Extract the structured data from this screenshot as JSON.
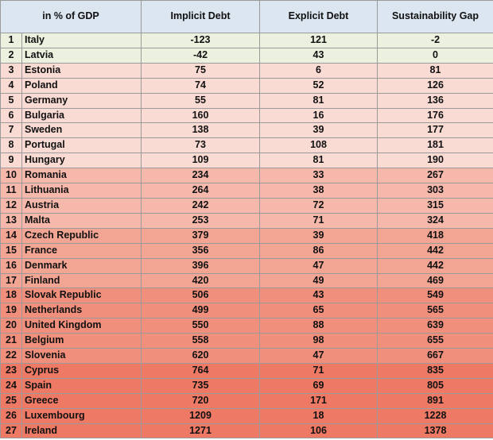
{
  "table": {
    "header": [
      "in % of GDP",
      "Implicit Debt",
      "Explicit Debt",
      "Sustainability Gap"
    ],
    "rows": [
      [
        1,
        "Italy",
        -123,
        121,
        -2
      ],
      [
        2,
        "Latvia",
        -42,
        43,
        0
      ],
      [
        3,
        "Estonia",
        75,
        6,
        81
      ],
      [
        4,
        "Poland",
        74,
        52,
        126
      ],
      [
        5,
        "Germany",
        55,
        81,
        136
      ],
      [
        6,
        "Bulgaria",
        160,
        16,
        176
      ],
      [
        7,
        "Sweden",
        138,
        39,
        177
      ],
      [
        8,
        "Portugal",
        73,
        108,
        181
      ],
      [
        9,
        "Hungary",
        109,
        81,
        190
      ],
      [
        10,
        "Romania",
        234,
        33,
        267
      ],
      [
        11,
        "Lithuania",
        264,
        38,
        303
      ],
      [
        12,
        "Austria",
        242,
        72,
        315
      ],
      [
        13,
        "Malta",
        253,
        71,
        324
      ],
      [
        14,
        "Czech Republic",
        379,
        39,
        418
      ],
      [
        15,
        "France",
        356,
        86,
        442
      ],
      [
        16,
        "Denmark",
        396,
        47,
        442
      ],
      [
        17,
        "Finland",
        420,
        49,
        469
      ],
      [
        18,
        "Slovak Republic",
        506,
        43,
        549
      ],
      [
        19,
        "Netherlands",
        499,
        65,
        565
      ],
      [
        20,
        "United Kingdom",
        550,
        88,
        639
      ],
      [
        21,
        "Belgium",
        558,
        98,
        655
      ],
      [
        22,
        "Slovenia",
        620,
        47,
        667
      ],
      [
        23,
        "Cyprus",
        764,
        71,
        835
      ],
      [
        24,
        "Spain",
        735,
        69,
        805
      ],
      [
        25,
        "Greece",
        720,
        171,
        891
      ],
      [
        26,
        "Luxembourg",
        1209,
        18,
        1228
      ],
      [
        27,
        "Ireland",
        1271,
        106,
        1378
      ]
    ]
  }
}
